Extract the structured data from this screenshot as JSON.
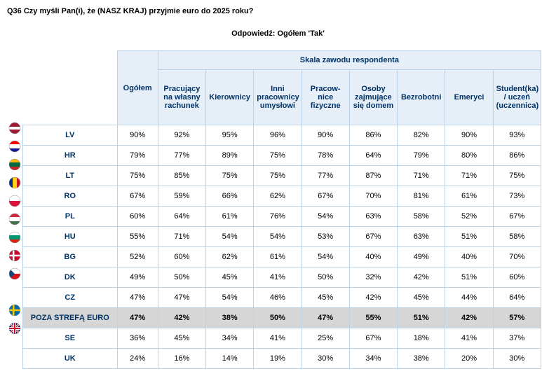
{
  "title": "Q36 Czy myśli Pan(i), że (NASZ KRAJ) przyjmie euro do 2025 roku?",
  "subtitle": "Odpowiedź: Ogółem 'Tak'",
  "super_header": "Skala zawodu respondenta",
  "columns": {
    "ogolem": "Ogółem",
    "c0": "Pracujący na własny rachunek",
    "c1": "Kierownicy",
    "c2": "Inni pracownicy umysłowi",
    "c3": "Pracow-nice fizyczne",
    "c4": "Osoby zajmujące się domem",
    "c5": "Bezrobotni",
    "c6": "Emeryci",
    "c7": "Student(ka) / uczeń (uczennica)"
  },
  "summary_label": "POZA STREFĄ EURO",
  "rows": [
    {
      "code": "LV",
      "flag": "lv",
      "v": [
        "90%",
        "92%",
        "95%",
        "96%",
        "90%",
        "86%",
        "82%",
        "90%",
        "93%"
      ]
    },
    {
      "code": "HR",
      "flag": "hr",
      "v": [
        "79%",
        "77%",
        "89%",
        "75%",
        "78%",
        "64%",
        "79%",
        "80%",
        "86%"
      ]
    },
    {
      "code": "LT",
      "flag": "lt",
      "v": [
        "75%",
        "85%",
        "75%",
        "75%",
        "77%",
        "87%",
        "71%",
        "71%",
        "75%"
      ]
    },
    {
      "code": "RO",
      "flag": "ro",
      "v": [
        "67%",
        "59%",
        "66%",
        "62%",
        "67%",
        "70%",
        "81%",
        "61%",
        "73%"
      ]
    },
    {
      "code": "PL",
      "flag": "pl",
      "v": [
        "60%",
        "64%",
        "61%",
        "76%",
        "54%",
        "63%",
        "58%",
        "52%",
        "67%"
      ]
    },
    {
      "code": "HU",
      "flag": "hu",
      "v": [
        "55%",
        "71%",
        "54%",
        "54%",
        "53%",
        "67%",
        "63%",
        "51%",
        "58%"
      ]
    },
    {
      "code": "BG",
      "flag": "bg",
      "v": [
        "52%",
        "60%",
        "62%",
        "61%",
        "54%",
        "40%",
        "49%",
        "40%",
        "70%"
      ]
    },
    {
      "code": "DK",
      "flag": "dk",
      "v": [
        "49%",
        "50%",
        "45%",
        "41%",
        "50%",
        "32%",
        "42%",
        "51%",
        "60%"
      ]
    },
    {
      "code": "CZ",
      "flag": "cz",
      "v": [
        "47%",
        "47%",
        "54%",
        "46%",
        "45%",
        "42%",
        "45%",
        "44%",
        "64%"
      ]
    },
    {
      "code": "SUMMARY",
      "flag": "",
      "v": [
        "47%",
        "42%",
        "38%",
        "50%",
        "47%",
        "55%",
        "51%",
        "42%",
        "57%"
      ],
      "summary": true
    },
    {
      "code": "SE",
      "flag": "se",
      "v": [
        "36%",
        "45%",
        "34%",
        "41%",
        "25%",
        "67%",
        "18%",
        "41%",
        "37%"
      ]
    },
    {
      "code": "UK",
      "flag": "uk",
      "v": [
        "24%",
        "16%",
        "14%",
        "19%",
        "30%",
        "34%",
        "38%",
        "20%",
        "30%"
      ]
    }
  ],
  "style": {
    "header_bg": "#e6eef8",
    "border_color": "#bcd2e6",
    "header_text": "#013366",
    "summary_bg": "#d6d6d6",
    "font_size_pt": 11
  }
}
